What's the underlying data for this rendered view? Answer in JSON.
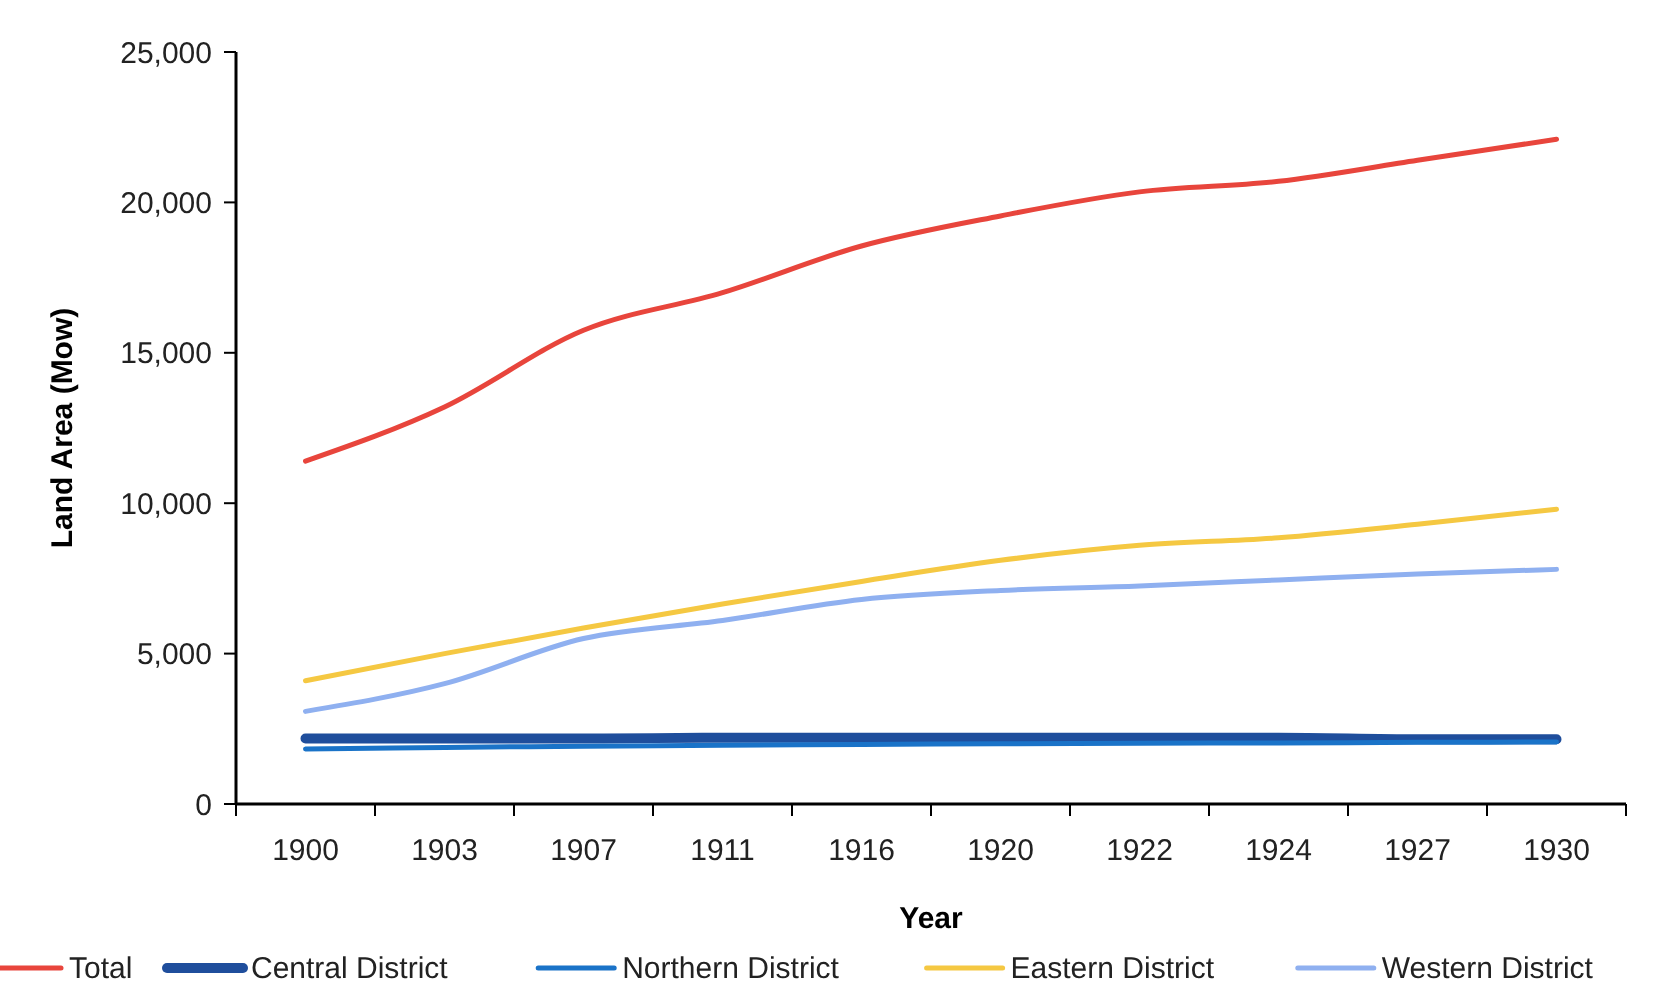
{
  "chart_data": {
    "type": "line",
    "xlabel": "Year",
    "ylabel": "Land Area (Mow)",
    "categories": [
      "1900",
      "1903",
      "1907",
      "1911",
      "1916",
      "1920",
      "1922",
      "1924",
      "1927",
      "1930"
    ],
    "series": [
      {
        "name": "Total",
        "color": "#e8453c",
        "values": [
          11400,
          13200,
          15750,
          17000,
          18550,
          19550,
          20350,
          20700,
          21400,
          22100
        ]
      },
      {
        "name": "Central District",
        "color": "#1f4e9c",
        "values": [
          2180,
          2180,
          2180,
          2200,
          2200,
          2200,
          2200,
          2200,
          2150,
          2150
        ]
      },
      {
        "name": "Northern District",
        "color": "#1a73c8",
        "values": [
          1830,
          1880,
          1920,
          1950,
          1980,
          2000,
          2020,
          2030,
          2050,
          2060
        ]
      },
      {
        "name": "Eastern District",
        "color": "#f5c842",
        "values": [
          4100,
          5000,
          5850,
          6650,
          7400,
          8100,
          8600,
          8850,
          9300,
          9800
        ]
      },
      {
        "name": "Western District",
        "color": "#8fb0f0",
        "values": [
          3080,
          4000,
          5500,
          6100,
          6800,
          7100,
          7250,
          7450,
          7650,
          7800
        ]
      }
    ],
    "ylim": [
      0,
      25000
    ],
    "yticks": [
      0,
      {
        "value": 5000,
        "label": "5,000"
      },
      {
        "value": 10000,
        "label": "10,000"
      },
      {
        "value": 15000,
        "label": "15,000"
      },
      {
        "value": 20000,
        "label": "20,000"
      },
      {
        "value": 25000,
        "label": "25,000"
      }
    ],
    "grid": false,
    "legend": "bottom",
    "marker": "none",
    "line_style": "solid"
  }
}
